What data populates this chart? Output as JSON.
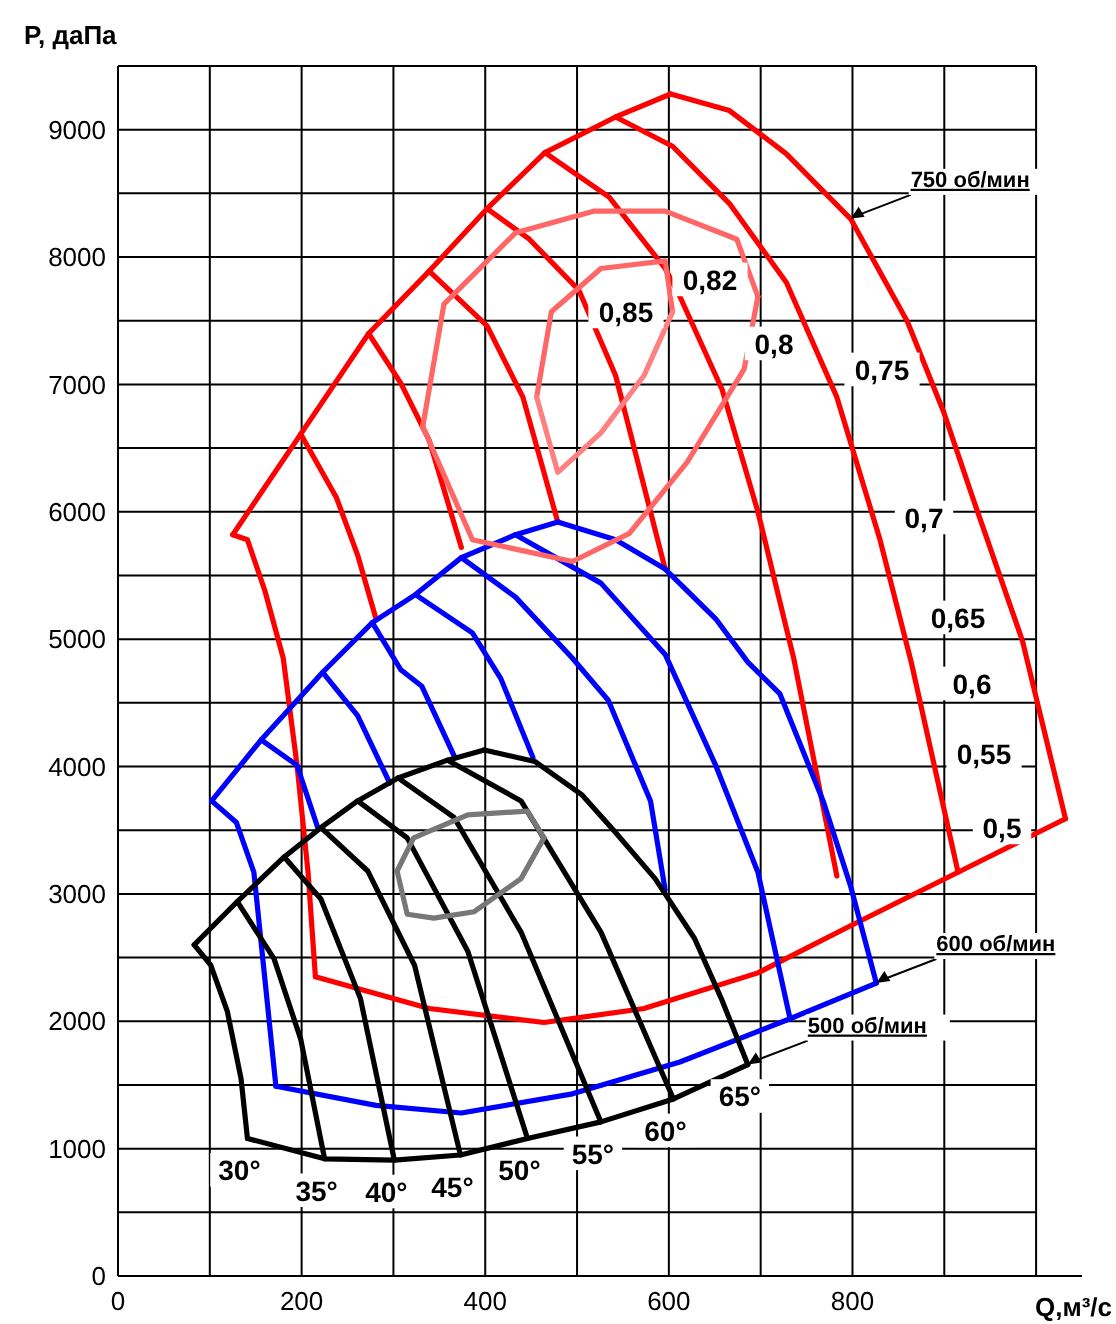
{
  "chart_data": {
    "type": "line",
    "xlabel": "Q,м³/с",
    "ylabel": "P, даПа",
    "xlim": [
      0,
      1050
    ],
    "ylim": [
      0,
      9500
    ],
    "xticks": [
      0,
      {
        "value": 100,
        "label": null
      },
      200,
      {
        "value": 300,
        "label": null
      },
      400,
      {
        "value": 500,
        "label": null
      },
      600,
      {
        "value": 700,
        "label": null
      },
      800,
      {
        "value": 900,
        "label": null
      },
      {
        "value": 1000,
        "label": null
      }
    ],
    "yticks": [
      0,
      {
        "value": 500,
        "label": null
      },
      1000,
      {
        "value": 1500,
        "label": null
      },
      2000,
      {
        "value": 2500,
        "label": null
      },
      3000,
      {
        "value": 3500,
        "label": null
      },
      4000,
      {
        "value": 4500,
        "label": null
      },
      5000,
      {
        "value": 5500,
        "label": null
      },
      6000,
      {
        "value": 6500,
        "label": null
      },
      7000,
      {
        "value": 7500,
        "label": null
      },
      8000,
      {
        "value": 8500,
        "label": null
      },
      9000,
      {
        "value": 9500,
        "label": null
      }
    ],
    "grid": true,
    "marker": "none",
    "line_style": "solid",
    "series": [
      {
        "color": "#ff0000",
        "x": [
          125,
          199,
          273,
          339,
          402,
          465,
          542,
          602
        ],
        "values": [
          5820,
          6610,
          7400,
          7890,
          8380,
          8820,
          9100,
          9280
        ]
      },
      {
        "color": "#ff0000",
        "x": [
          602,
          666,
          728,
          798,
          860,
          899,
          931,
          985,
          1032
        ],
        "values": [
          9280,
          9150,
          8810,
          8300,
          7490,
          6790,
          6110,
          4990,
          3590
        ]
      },
      {
        "color": "#ff0000",
        "x": [
          215,
          339,
          464,
          573,
          697,
          798,
          915,
          1032
        ],
        "values": [
          2350,
          2100,
          1990,
          2100,
          2380,
          2750,
          3170,
          3590
        ]
      },
      {
        "color": "#ff0000",
        "x": [
          125,
          141,
          160,
          180,
          195,
          207,
          215
        ],
        "values": [
          5820,
          5780,
          5380,
          4850,
          4010,
          3170,
          2350
        ]
      },
      {
        "color": "#ff0000",
        "x": [
          199,
          238,
          261,
          281
        ],
        "values": [
          6610,
          6110,
          5660,
          5160
        ]
      },
      {
        "color": "#ff0000",
        "x": [
          273,
          308,
          339,
          374
        ],
        "values": [
          7400,
          7010,
          6560,
          5720
        ]
      },
      {
        "color": "#ff0000",
        "x": [
          339,
          402,
          441,
          479
        ],
        "values": [
          7890,
          7460,
          6900,
          5920
        ]
      },
      {
        "color": "#ff0000",
        "x": [
          402,
          448,
          502,
          542,
          596
        ],
        "values": [
          8380,
          8140,
          7740,
          7070,
          5550
        ]
      },
      {
        "color": "#ff0000",
        "x": [
          465,
          535,
          596,
          612,
          658,
          697,
          736,
          783
        ],
        "values": [
          8820,
          8470,
          7910,
          7690,
          6960,
          6000,
          4850,
          3140
        ]
      },
      {
        "color": "#ff0000",
        "x": [
          542,
          604,
          666,
          728,
          783,
          830,
          864,
          915
        ],
        "values": [
          9100,
          8870,
          8420,
          7800,
          6900,
          5780,
          4820,
          3170
        ]
      },
      {
        "color": "#0000ff",
        "x": [
          102,
          156,
          223,
          277,
          324,
          374,
          433,
          479
        ],
        "values": [
          3730,
          4210,
          4740,
          5130,
          5350,
          5640,
          5820,
          5920
        ]
      },
      {
        "color": "#0000ff",
        "x": [
          479,
          542,
          596,
          651,
          686,
          721,
          768,
          798,
          826
        ],
        "values": [
          5920,
          5780,
          5550,
          5160,
          4820,
          4570,
          3730,
          3060,
          2300
        ]
      },
      {
        "color": "#0000ff",
        "x": [
          172,
          281,
          374,
          495,
          612,
          732,
          826
        ],
        "values": [
          1490,
          1340,
          1280,
          1430,
          1680,
          2020,
          2300
        ]
      },
      {
        "color": "#0000ff",
        "x": [
          102,
          129,
          148,
          160,
          172
        ],
        "values": [
          3730,
          3560,
          3170,
          2330,
          1490
        ]
      },
      {
        "color": "#0000ff",
        "x": [
          156,
          195,
          218
        ],
        "values": [
          4210,
          4010,
          3510
        ]
      },
      {
        "color": "#0000ff",
        "x": [
          223,
          261,
          296
        ],
        "values": [
          4740,
          4400,
          3870
        ]
      },
      {
        "color": "#0000ff",
        "x": [
          277,
          308,
          331,
          367
        ],
        "values": [
          5130,
          4760,
          4630,
          4070
        ]
      },
      {
        "color": "#0000ff",
        "x": [
          324,
          386,
          417,
          452
        ],
        "values": [
          5350,
          5050,
          4690,
          4070
        ]
      },
      {
        "color": "#0000ff",
        "x": [
          374,
          433,
          495,
          534,
          580,
          596
        ],
        "values": [
          5640,
          5330,
          4850,
          4520,
          3730,
          3030
        ]
      },
      {
        "color": "#0000ff",
        "x": [
          433,
          526,
          596,
          651,
          697,
          732
        ],
        "values": [
          5820,
          5440,
          4880,
          4010,
          3170,
          2020
        ]
      },
      {
        "color": "#000000",
        "x": [
          83,
          130,
          181,
          221,
          261,
          305,
          359,
          399
        ],
        "values": [
          2600,
          2940,
          3290,
          3520,
          3730,
          3910,
          4050,
          4130
        ]
      },
      {
        "color": "#000000",
        "x": [
          141,
          225,
          301,
          373,
          446,
          526,
          605,
          686
        ],
        "values": [
          1080,
          920,
          910,
          950,
          1080,
          1210,
          1390,
          1660
        ]
      },
      {
        "name": "30°",
        "color": "#000000",
        "x": [
          83,
          101,
          119,
          134,
          141
        ],
        "values": [
          2600,
          2440,
          2080,
          1550,
          1080
        ]
      },
      {
        "name": "35°",
        "color": "#000000",
        "x": [
          130,
          170,
          199,
          225
        ],
        "values": [
          2940,
          2490,
          1860,
          920
        ]
      },
      {
        "name": "40°",
        "color": "#000000",
        "x": [
          181,
          221,
          264,
          301
        ],
        "values": [
          3290,
          2960,
          2180,
          910
        ]
      },
      {
        "name": "45°",
        "color": "#000000",
        "x": [
          221,
          272,
          323,
          373
        ],
        "values": [
          3520,
          3180,
          2440,
          950
        ]
      },
      {
        "name": "50°",
        "color": "#000000",
        "x": [
          261,
          315,
          381,
          446
        ],
        "values": [
          3730,
          3440,
          2550,
          1080
        ]
      },
      {
        "name": "55°",
        "color": "#000000",
        "x": [
          305,
          366,
          439,
          526
        ],
        "values": [
          3910,
          3600,
          2700,
          1210
        ]
      },
      {
        "name": "60°",
        "color": "#000000",
        "x": [
          359,
          439,
          526,
          605
        ],
        "values": [
          4050,
          3730,
          2700,
          1390
        ]
      },
      {
        "name": "65°",
        "color": "#000000",
        "x": [
          399,
          454,
          505,
          541,
          585,
          628,
          657,
          686
        ],
        "values": [
          4130,
          4040,
          3780,
          3490,
          3120,
          2650,
          2180,
          1660
        ]
      },
      {
        "color": "#ff6666",
        "x": [
          456,
          472,
          526,
          596,
          604
        ],
        "values": [
          6900,
          7570,
          7910,
          7970,
          7570
        ]
      },
      {
        "color": "#ff8080",
        "x": [
          456,
          479,
          526,
          573,
          604
        ],
        "values": [
          6900,
          6310,
          6620,
          7070,
          7570
        ]
      },
      {
        "color": "#ff6666",
        "x": [
          332,
          355,
          433,
          518,
          596,
          674,
          697
        ],
        "values": [
          6670,
          7630,
          8190,
          8360,
          8360,
          8140,
          7690
        ]
      },
      {
        "color": "#ff6666",
        "x": [
          332,
          386,
          495,
          557,
          620,
          682,
          697
        ],
        "values": [
          6670,
          5780,
          5610,
          5830,
          6390,
          7120,
          7690
        ]
      },
      {
        "color": "#777777",
        "x": [
          304,
          322,
          381,
          446,
          464
        ],
        "values": [
          3180,
          3440,
          3620,
          3650,
          3440
        ]
      },
      {
        "color": "#777777",
        "x": [
          304,
          315,
          344,
          388,
          439,
          464
        ],
        "values": [
          3180,
          2840,
          2810,
          2860,
          3120,
          3440
        ]
      }
    ],
    "annotations": [
      {
        "text": "750 об/мин",
        "x": 798,
        "y": 8300
      },
      {
        "text": "600 об/мин",
        "x": 826,
        "y": 2300
      },
      {
        "text": "500 об/мин",
        "x": 686,
        "y": 1660
      },
      "0,82",
      "0,85",
      "0,8",
      "0,75",
      "0,7",
      "0,65",
      "0,6",
      "0,55",
      "0,5"
    ]
  }
}
